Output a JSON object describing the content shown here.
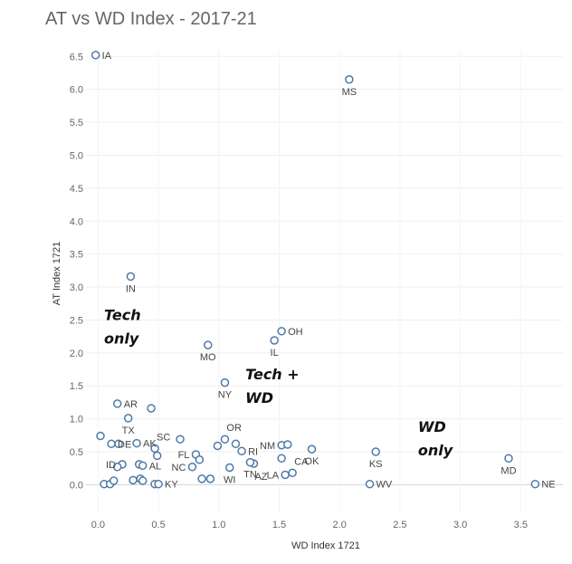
{
  "chart_data": {
    "type": "scatter",
    "title": "AT vs WD Index - 2017-21",
    "xlabel": "WD Index 1721",
    "ylabel": "AT Index 1721",
    "xlim": [
      -0.1,
      3.85
    ],
    "ylim": [
      -0.42,
      6.6
    ],
    "xticks": [
      0.0,
      0.5,
      1.0,
      1.5,
      2.0,
      2.5,
      3.0,
      3.5
    ],
    "yticks": [
      0.0,
      0.5,
      1.0,
      1.5,
      2.0,
      2.5,
      3.0,
      3.5,
      4.0,
      4.5,
      5.0,
      5.5,
      6.0,
      6.5
    ],
    "tick_format": "0.0",
    "grid": true,
    "marker_color": "#4e79a7",
    "points": [
      {
        "x": -0.02,
        "y": 6.52,
        "label": "IA"
      },
      {
        "x": 2.08,
        "y": 6.15,
        "label": "MS"
      },
      {
        "x": 0.27,
        "y": 3.16,
        "label": "IN"
      },
      {
        "x": 1.52,
        "y": 2.33,
        "label": "OH"
      },
      {
        "x": 1.46,
        "y": 2.19,
        "label": "IL"
      },
      {
        "x": 0.91,
        "y": 2.12,
        "label": "MO"
      },
      {
        "x": 1.05,
        "y": 1.55,
        "label": "NY"
      },
      {
        "x": 0.16,
        "y": 1.23,
        "label": "AR"
      },
      {
        "x": 0.44,
        "y": 1.16,
        "label": ""
      },
      {
        "x": 0.25,
        "y": 1.01,
        "label": "TX"
      },
      {
        "x": 0.02,
        "y": 0.74,
        "label": ""
      },
      {
        "x": 0.11,
        "y": 0.62,
        "label": "DE"
      },
      {
        "x": 0.17,
        "y": 0.62,
        "label": ""
      },
      {
        "x": 0.32,
        "y": 0.63,
        "label": "AK"
      },
      {
        "x": 0.47,
        "y": 0.55,
        "label": "SC"
      },
      {
        "x": 0.49,
        "y": 0.44,
        "label": ""
      },
      {
        "x": 0.68,
        "y": 0.69,
        "label": ""
      },
      {
        "x": 0.99,
        "y": 0.59,
        "label": ""
      },
      {
        "x": 1.05,
        "y": 0.69,
        "label": "OR"
      },
      {
        "x": 1.14,
        "y": 0.62,
        "label": ""
      },
      {
        "x": 1.19,
        "y": 0.51,
        "label": "RI"
      },
      {
        "x": 0.81,
        "y": 0.46,
        "label": "FL"
      },
      {
        "x": 0.84,
        "y": 0.38,
        "label": ""
      },
      {
        "x": 0.78,
        "y": 0.27,
        "label": "NC"
      },
      {
        "x": 0.86,
        "y": 0.09,
        "label": ""
      },
      {
        "x": 0.93,
        "y": 0.09,
        "label": ""
      },
      {
        "x": 1.09,
        "y": 0.26,
        "label": "WI"
      },
      {
        "x": 1.29,
        "y": 0.32,
        "label": "AZ"
      },
      {
        "x": 1.52,
        "y": 0.6,
        "label": "NM"
      },
      {
        "x": 1.57,
        "y": 0.61,
        "label": ""
      },
      {
        "x": 1.52,
        "y": 0.4,
        "label": ""
      },
      {
        "x": 1.77,
        "y": 0.54,
        "label": "OK"
      },
      {
        "x": 1.55,
        "y": 0.15,
        "label": "LA"
      },
      {
        "x": 1.61,
        "y": 0.18,
        "label": "CA"
      },
      {
        "x": 0.2,
        "y": 0.31,
        "label": "ID"
      },
      {
        "x": 0.16,
        "y": 0.27,
        "label": ""
      },
      {
        "x": 0.34,
        "y": 0.31,
        "label": ""
      },
      {
        "x": 0.37,
        "y": 0.29,
        "label": "AL"
      },
      {
        "x": 0.05,
        "y": 0.01,
        "label": ""
      },
      {
        "x": 0.1,
        "y": 0.01,
        "label": ""
      },
      {
        "x": 0.13,
        "y": 0.06,
        "label": ""
      },
      {
        "x": 0.29,
        "y": 0.07,
        "label": ""
      },
      {
        "x": 0.35,
        "y": 0.09,
        "label": ""
      },
      {
        "x": 0.37,
        "y": 0.06,
        "label": ""
      },
      {
        "x": 0.47,
        "y": 0.01,
        "label": ""
      },
      {
        "x": 0.5,
        "y": 0.01,
        "label": "KY"
      },
      {
        "x": 2.3,
        "y": 0.5,
        "label": "KS"
      },
      {
        "x": 2.25,
        "y": 0.01,
        "label": "WV"
      },
      {
        "x": 3.4,
        "y": 0.4,
        "label": "MD"
      },
      {
        "x": 3.62,
        "y": 0.01,
        "label": "NE"
      },
      {
        "x": 1.26,
        "y": 0.34,
        "label": "TN"
      }
    ],
    "annotations": [
      {
        "lines": [
          "Tech",
          "only"
        ],
        "x": 0.05,
        "y": 2.5
      },
      {
        "lines": [
          "Tech +",
          "WD"
        ],
        "x": 1.22,
        "y": 1.6
      },
      {
        "lines": [
          "WD",
          "only"
        ],
        "x": 2.65,
        "y": 0.8
      }
    ]
  }
}
